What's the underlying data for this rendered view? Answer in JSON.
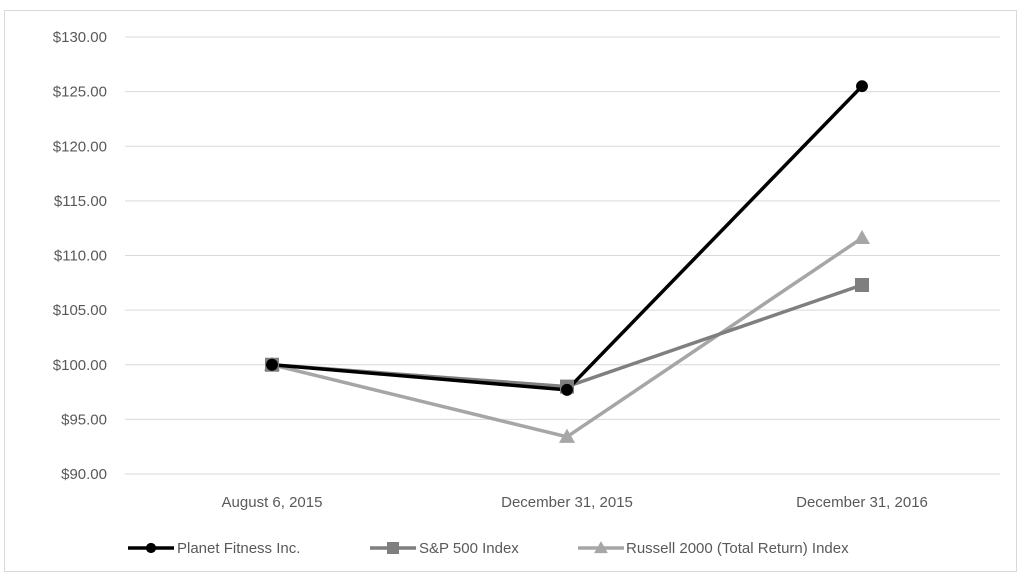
{
  "chart_data": {
    "type": "line",
    "title": "",
    "xlabel": "",
    "ylabel": "",
    "categories": [
      "August 6, 2015",
      "December 31, 2015",
      "December 31, 2016"
    ],
    "y_ticks": [
      "$90.00",
      "$95.00",
      "$100.00",
      "$105.00",
      "$110.00",
      "$115.00",
      "$120.00",
      "$125.00",
      "$130.00"
    ],
    "ylim": [
      90,
      130
    ],
    "grid": true,
    "legend_position": "bottom",
    "series": [
      {
        "name": "Planet Fitness Inc.",
        "values": [
          100.0,
          97.7,
          125.5
        ],
        "color": "#000000",
        "marker": "circle"
      },
      {
        "name": "S&P 500 Index",
        "values": [
          100.0,
          98.0,
          107.3
        ],
        "color": "#7f7f7f",
        "marker": "square"
      },
      {
        "name": "Russell 2000 (Total Return) Index",
        "values": [
          100.0,
          93.4,
          111.6
        ],
        "color": "#a6a6a6",
        "marker": "triangle"
      }
    ]
  }
}
